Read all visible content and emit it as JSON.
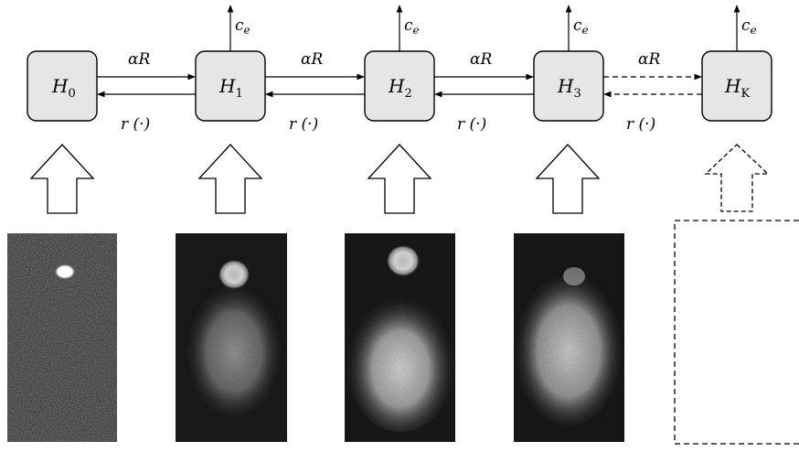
{
  "states": [
    {
      "base": "H",
      "sub": "0",
      "dashed": false
    },
    {
      "base": "H",
      "sub": "1",
      "dashed": false
    },
    {
      "base": "H",
      "sub": "2",
      "dashed": false
    },
    {
      "base": "H",
      "sub": "3",
      "dashed": false
    },
    {
      "base": "H",
      "sub": "K",
      "dashed": true
    }
  ],
  "transitions": [
    {
      "forward": "αR",
      "backward": "r (·)",
      "dashed": false
    },
    {
      "forward": "αR",
      "backward": "r (·)",
      "dashed": false
    },
    {
      "forward": "αR",
      "backward": "r (·)",
      "dashed": false
    },
    {
      "forward": "αR",
      "backward": "r (·)",
      "dashed": true
    }
  ],
  "output": {
    "base": "c",
    "sub": "e"
  },
  "images": [
    {
      "stage": "H0",
      "type": "head-only"
    },
    {
      "stage": "H1",
      "type": "small-tail"
    },
    {
      "stage": "H2",
      "type": "large-tail"
    },
    {
      "stage": "H3",
      "type": "diffuse"
    },
    {
      "stage": "HK",
      "type": "placeholder-dashed"
    }
  ],
  "colors": {
    "box_fill": "#e6e6e6",
    "stroke": "#000000",
    "image_bg": "#161616"
  }
}
